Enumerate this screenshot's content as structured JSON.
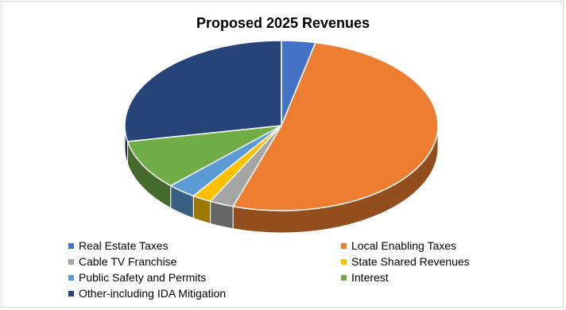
{
  "chart_data": {
    "type": "pie",
    "title": "Proposed 2025 Revenues",
    "legend_position": "bottom",
    "style": "3d",
    "slices": [
      {
        "label": "Real Estate Taxes",
        "value": 3.5,
        "color": "#4472C4"
      },
      {
        "label": "Local Enabling Taxes",
        "value": 51.5,
        "color": "#ED7D31"
      },
      {
        "label": "Cable TV Franchise",
        "value": 2.5,
        "color": "#A5A5A5"
      },
      {
        "label": "State Shared Revenues",
        "value": 2.0,
        "color": "#FFC000"
      },
      {
        "label": "Public Safety and Permits",
        "value": 3.0,
        "color": "#5B9BD5"
      },
      {
        "label": "Interest",
        "value": 9.5,
        "color": "#70AD47"
      },
      {
        "label": "Other-including IDA Mitigation",
        "value": 28.0,
        "color": "#264478"
      }
    ]
  }
}
